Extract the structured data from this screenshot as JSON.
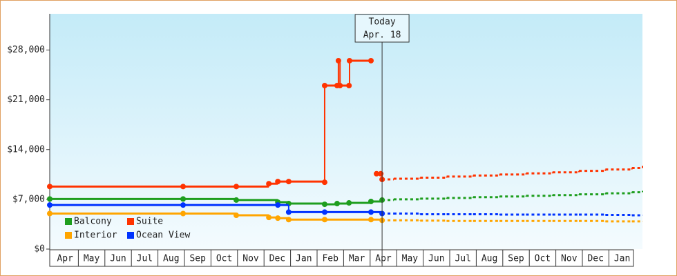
{
  "chart_data": {
    "type": "step-line",
    "categories": [
      "Apr",
      "May",
      "Jun",
      "Jul",
      "Aug",
      "Sep",
      "Oct",
      "Nov",
      "Dec",
      "Jan",
      "Feb",
      "Mar",
      "Apr",
      "May",
      "Jun",
      "Jul",
      "Aug",
      "Sep",
      "Oct",
      "Nov",
      "Dec",
      "Jan"
    ],
    "xlim": [
      0,
      22.4
    ],
    "ylim": [
      0,
      33000
    ],
    "yticks": [
      {
        "value": 0,
        "label": "$0"
      },
      {
        "value": 7000,
        "label": "$7,000"
      },
      {
        "value": 14000,
        "label": "$14,000"
      },
      {
        "value": 21000,
        "label": "$21,000"
      },
      {
        "value": 28000,
        "label": "$28,000"
      }
    ],
    "annotation": {
      "lines": [
        "Today",
        "Apr. 18"
      ],
      "x": 12.56
    },
    "series": [
      {
        "name": "Balcony",
        "color": "#1e9e1e",
        "x": [
          0,
          5.04,
          7.05,
          8.62,
          9.03,
          10.39,
          10.86,
          11.31,
          12.14,
          12.56
        ],
        "values": [
          7050,
          7050,
          6900,
          6600,
          6400,
          6300,
          6400,
          6500,
          6700,
          6900
        ],
        "forecast_x": [
          12.56,
          13,
          14,
          15,
          16,
          17,
          18,
          19,
          20,
          21,
          22,
          22.4
        ],
        "forecast_values": [
          6900,
          7000,
          7100,
          7200,
          7300,
          7400,
          7500,
          7600,
          7700,
          7850,
          8000,
          8200
        ]
      },
      {
        "name": "Suite",
        "color": "#ff3300",
        "x": [
          0,
          5.04,
          7.05,
          8.28,
          8.62,
          9.03,
          10.39,
          10.39,
          10.86,
          10.91,
          10.97,
          11.31,
          11.33,
          12.14,
          12.2,
          12.35,
          12.51,
          12.56
        ],
        "values": [
          8800,
          8800,
          8800,
          9200,
          9500,
          9500,
          9400,
          23000,
          23000,
          26500,
          23000,
          23000,
          26500,
          26500,
          null,
          10600,
          10600,
          9800
        ],
        "forecast_x": [
          12.56,
          13,
          14,
          15,
          16,
          17,
          18,
          19,
          20,
          21,
          22,
          22.4
        ],
        "forecast_values": [
          9800,
          9900,
          10050,
          10200,
          10350,
          10500,
          10650,
          10800,
          11000,
          11200,
          11400,
          11700
        ]
      },
      {
        "name": "Interior",
        "color": "#ffa500",
        "x": [
          0,
          5.04,
          7.05,
          8.28,
          8.62,
          9.03,
          10.39,
          12.14,
          12.56
        ],
        "values": [
          5000,
          5000,
          4750,
          4450,
          4350,
          4150,
          4150,
          4150,
          4050
        ],
        "forecast_x": [
          12.56,
          13,
          14,
          15,
          16,
          17,
          18,
          19,
          20,
          21,
          22,
          22.4
        ],
        "forecast_values": [
          4050,
          4050,
          4000,
          3950,
          3950,
          3950,
          3950,
          3950,
          3950,
          3900,
          3900,
          3900
        ]
      },
      {
        "name": "Ocean View",
        "color": "#0033ff",
        "x": [
          0,
          5.04,
          8.62,
          9.03,
          10.39,
          12.14,
          12.56
        ],
        "values": [
          6200,
          6200,
          6200,
          5200,
          5200,
          5200,
          5000
        ],
        "forecast_x": [
          12.56,
          13,
          14,
          15,
          16,
          17,
          18,
          19,
          20,
          21,
          22,
          22.4
        ],
        "forecast_values": [
          5000,
          5000,
          4900,
          4900,
          4900,
          4850,
          4850,
          4850,
          4850,
          4800,
          4750,
          4750
        ]
      }
    ]
  }
}
